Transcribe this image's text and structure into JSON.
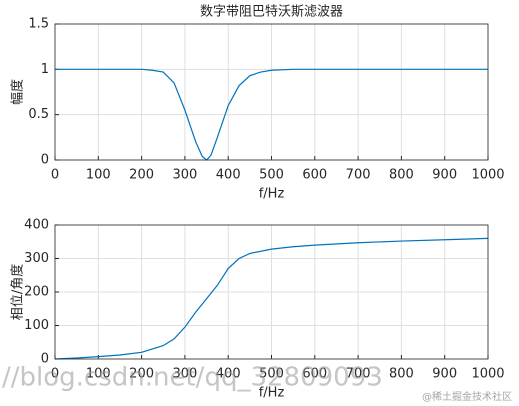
{
  "chart_data": [
    {
      "type": "line",
      "title": "数字带阻巴特沃斯滤波器",
      "x_label": "f/Hz",
      "y_label": "幅度",
      "x": [
        0,
        50,
        100,
        150,
        200,
        225,
        250,
        275,
        300,
        325,
        340,
        350,
        360,
        375,
        400,
        425,
        450,
        475,
        500,
        550,
        600,
        700,
        800,
        900,
        1000
      ],
      "series": [
        {
          "name": "幅度",
          "color": "#0072bd",
          "values": [
            1,
            1,
            1,
            1,
            1,
            0.99,
            0.97,
            0.85,
            0.55,
            0.2,
            0.04,
            0.0,
            0.05,
            0.25,
            0.6,
            0.82,
            0.93,
            0.97,
            0.99,
            1,
            1,
            1,
            1,
            1,
            1
          ]
        }
      ],
      "xlim": [
        0,
        1000
      ],
      "xticks": [
        0,
        100,
        200,
        300,
        400,
        500,
        600,
        700,
        800,
        900,
        1000
      ],
      "ylim": [
        0,
        1.5
      ],
      "yticks": [
        0,
        0.5,
        1,
        1.5
      ],
      "grid": true
    },
    {
      "type": "line",
      "x_label": "f/Hz",
      "y_label": "相位/角度",
      "x": [
        0,
        50,
        100,
        150,
        200,
        250,
        275,
        300,
        325,
        350,
        375,
        400,
        425,
        450,
        500,
        550,
        600,
        700,
        800,
        900,
        1000
      ],
      "series": [
        {
          "name": "相位",
          "color": "#0072bd",
          "values": [
            0,
            3,
            7,
            12,
            20,
            40,
            60,
            95,
            140,
            180,
            220,
            270,
            300,
            315,
            328,
            335,
            340,
            347,
            352,
            356,
            360
          ]
        }
      ],
      "xlim": [
        0,
        1000
      ],
      "xticks": [
        0,
        100,
        200,
        300,
        400,
        500,
        600,
        700,
        800,
        900,
        1000
      ],
      "ylim": [
        0,
        400
      ],
      "yticks": [
        0,
        100,
        200,
        300,
        400
      ],
      "grid": true
    }
  ],
  "watermarks": [
    "//blog.csdn.net/qq_32809093",
    "@稀土掘金技术社区"
  ]
}
